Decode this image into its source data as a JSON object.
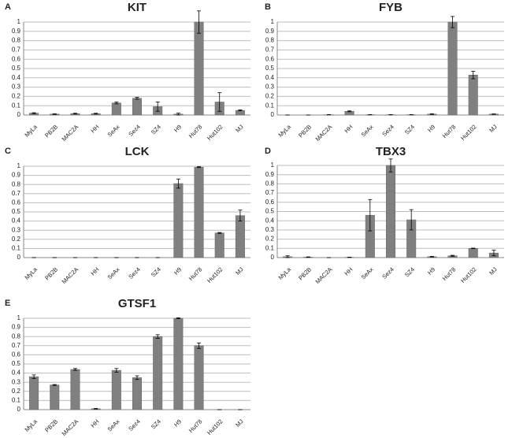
{
  "chart_data": [
    {
      "type": "bar",
      "label": "A",
      "title": "KIT",
      "color": "#808080",
      "categories": [
        "MyLa",
        "PB2B",
        "MAC2A",
        "HH",
        "SeAx",
        "Sez4",
        "SZ4",
        "H9",
        "Hut78",
        "Hut102",
        "MJ"
      ],
      "values": [
        0.02,
        0.01,
        0.015,
        0.015,
        0.13,
        0.18,
        0.09,
        0.01,
        1,
        0.14,
        0.05
      ],
      "errors": [
        0.005,
        0.003,
        0.004,
        0.004,
        0.01,
        0.01,
        0.05,
        0.01,
        0.12,
        0.1,
        0.005
      ],
      "ylim": [
        0,
        1
      ],
      "yticks": [
        0,
        0.1,
        0.2,
        0.3,
        0.4,
        0.5,
        0.6,
        0.7,
        0.8,
        0.9,
        1
      ],
      "grid": true
    },
    {
      "type": "bar",
      "label": "B",
      "title": "FYB",
      "color": "#808080",
      "categories": [
        "MyLa",
        "PB2B",
        "MAC2A",
        "HH",
        "SeAx",
        "Sez4",
        "SZ4",
        "H9",
        "Hut78",
        "Hut102",
        "MJ"
      ],
      "values": [
        0,
        0,
        0.003,
        0.04,
        0.003,
        0.003,
        0.003,
        0.01,
        1,
        0.43,
        0.01
      ],
      "errors": [
        0,
        0,
        0.001,
        0.005,
        0.001,
        0.001,
        0.001,
        0.003,
        0.06,
        0.04,
        0.002
      ],
      "ylim": [
        0,
        1
      ],
      "yticks": [
        0,
        0.1,
        0.2,
        0.3,
        0.4,
        0.5,
        0.6,
        0.7,
        0.8,
        0.9,
        1
      ],
      "grid": true
    },
    {
      "type": "bar",
      "label": "C",
      "title": "LCK",
      "color": "#808080",
      "categories": [
        "MyLa",
        "PB2B",
        "MAC2A",
        "HH",
        "SeAx",
        "Sez4",
        "SZ4",
        "H9",
        "Hut78",
        "Hut102",
        "MJ"
      ],
      "values": [
        0,
        0,
        0,
        0,
        0,
        0,
        0,
        0.81,
        0.99,
        0.27,
        0.46
      ],
      "errors": [
        0,
        0,
        0,
        0,
        0,
        0,
        0,
        0.05,
        0.005,
        0.005,
        0.06
      ],
      "ylim": [
        0,
        1
      ],
      "yticks": [
        0,
        0.1,
        0.2,
        0.3,
        0.4,
        0.5,
        0.6,
        0.7,
        0.8,
        0.9,
        1
      ],
      "grid": true
    },
    {
      "type": "bar",
      "label": "D",
      "title": "TBX3",
      "color": "#808080",
      "categories": [
        "MyLa",
        "PB2B",
        "MAC2A",
        "HH",
        "SeAx",
        "Sez4",
        "SZ4",
        "H9",
        "Hut78",
        "Hut102",
        "MJ"
      ],
      "values": [
        0.01,
        0.005,
        0,
        0.003,
        0.46,
        1,
        0.41,
        0.01,
        0.02,
        0.1,
        0.05
      ],
      "errors": [
        0.01,
        0.003,
        0,
        0.002,
        0.17,
        0.07,
        0.11,
        0.003,
        0.005,
        0.003,
        0.03
      ],
      "ylim": [
        0,
        1
      ],
      "yticks": [
        0,
        0.1,
        0.2,
        0.3,
        0.4,
        0.5,
        0.6,
        0.7,
        0.8,
        0.9,
        1
      ],
      "grid": true
    },
    {
      "type": "bar",
      "label": "E",
      "title": "GTSF1",
      "color": "#808080",
      "categories": [
        "MyLa",
        "PB2B",
        "MAC2A",
        "HH",
        "SeAx",
        "Sez4",
        "SZ4",
        "H9",
        "Hut78",
        "Hut102",
        "MJ"
      ],
      "values": [
        0.36,
        0.27,
        0.44,
        0.01,
        0.43,
        0.35,
        0.8,
        1,
        0.7,
        0,
        0
      ],
      "errors": [
        0.02,
        0.005,
        0.01,
        0.003,
        0.02,
        0.02,
        0.02,
        0.005,
        0.03,
        0,
        0
      ],
      "ylim": [
        0,
        1
      ],
      "yticks": [
        0,
        0.1,
        0.2,
        0.3,
        0.4,
        0.5,
        0.6,
        0.7,
        0.8,
        0.9,
        1
      ],
      "grid": true
    }
  ]
}
